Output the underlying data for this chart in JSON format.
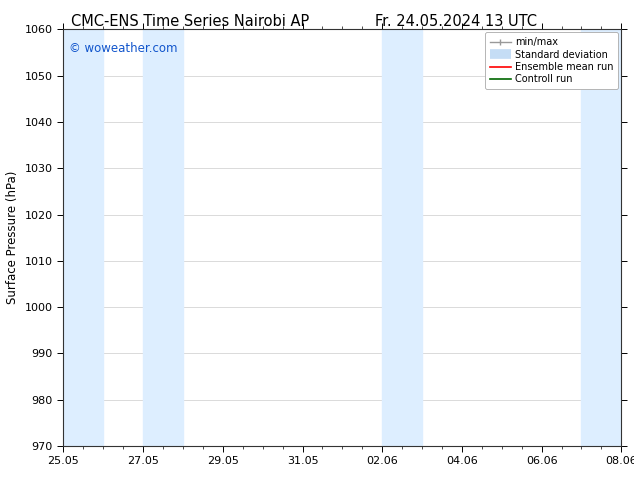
{
  "title_left": "CMC-ENS Time Series Nairobi AP",
  "title_right": "Fr. 24.05.2024 13 UTC",
  "ylabel": "Surface Pressure (hPa)",
  "ylim": [
    970,
    1060
  ],
  "yticks": [
    970,
    980,
    990,
    1000,
    1010,
    1020,
    1030,
    1040,
    1050,
    1060
  ],
  "x_start": 0,
  "x_end": 14,
  "xtick_labels": [
    "25.05",
    "27.05",
    "29.05",
    "31.05",
    "02.06",
    "04.06",
    "06.06",
    "08.06"
  ],
  "xtick_positions": [
    0,
    2,
    4,
    6,
    8,
    10,
    12,
    14
  ],
  "shaded_bands": [
    {
      "x_start": 0.0,
      "x_end": 1.0,
      "color": "#ddeeff"
    },
    {
      "x_start": 2.0,
      "x_end": 3.0,
      "color": "#ddeeff"
    },
    {
      "x_start": 8.0,
      "x_end": 9.0,
      "color": "#ddeeff"
    },
    {
      "x_start": 13.0,
      "x_end": 14.0,
      "color": "#ddeeff"
    }
  ],
  "watermark_text": "© woweather.com",
  "watermark_color": "#1155cc",
  "legend_items": [
    {
      "label": "min/max",
      "color": "#999999"
    },
    {
      "label": "Standard deviation",
      "color": "#c5ddf5"
    },
    {
      "label": "Ensemble mean run",
      "color": "#ff0000"
    },
    {
      "label": "Controll run",
      "color": "#006600"
    }
  ],
  "bg_color": "#ffffff",
  "plot_bg_color": "#ffffff",
  "grid_color": "#cccccc",
  "title_fontsize": 10.5,
  "axis_label_fontsize": 8.5,
  "tick_fontsize": 8
}
